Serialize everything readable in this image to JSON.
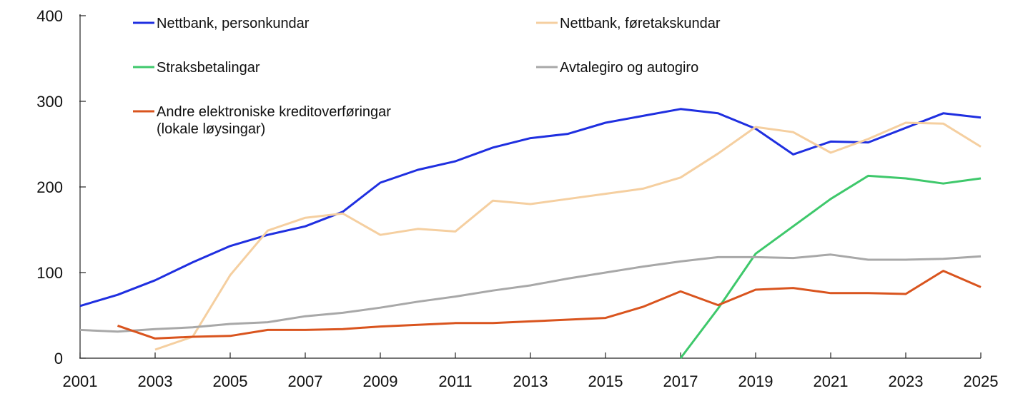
{
  "chart_data": {
    "type": "line",
    "title": "",
    "xlabel": "",
    "ylabel": "",
    "xlim": [
      2001,
      2025
    ],
    "ylim": [
      0,
      400
    ],
    "x_ticks": [
      "2001",
      "2003",
      "2005",
      "2007",
      "2009",
      "2011",
      "2013",
      "2015",
      "2017",
      "2019",
      "2021",
      "2023",
      "2025"
    ],
    "y_ticks": [
      "0",
      "100",
      "200",
      "300",
      "400"
    ],
    "grid": false,
    "legend_position": "top-left, two columns inside plot",
    "series": [
      {
        "name": "Nettbank, personkundar",
        "color": "#1f2fe0",
        "points": [
          [
            2001,
            61
          ],
          [
            2002,
            74
          ],
          [
            2003,
            91
          ],
          [
            2004,
            112
          ],
          [
            2005,
            131
          ],
          [
            2006,
            144
          ],
          [
            2007,
            154
          ],
          [
            2008,
            171
          ],
          [
            2009,
            205
          ],
          [
            2010,
            220
          ],
          [
            2011,
            230
          ],
          [
            2012,
            246
          ],
          [
            2013,
            257
          ],
          [
            2014,
            262
          ],
          [
            2015,
            275
          ],
          [
            2016,
            283
          ],
          [
            2017,
            291
          ],
          [
            2018,
            286
          ],
          [
            2019,
            268
          ],
          [
            2020,
            238
          ],
          [
            2021,
            253
          ],
          [
            2022,
            252
          ],
          [
            2023,
            269
          ],
          [
            2024,
            286
          ],
          [
            2025,
            281
          ]
        ]
      },
      {
        "name": "Nettbank, føretakskundar",
        "color": "#f5cfa0",
        "points": [
          [
            2003,
            10
          ],
          [
            2004,
            25
          ],
          [
            2005,
            97
          ],
          [
            2006,
            149
          ],
          [
            2007,
            164
          ],
          [
            2008,
            169
          ],
          [
            2009,
            144
          ],
          [
            2010,
            151
          ],
          [
            2011,
            148
          ],
          [
            2012,
            184
          ],
          [
            2013,
            180
          ],
          [
            2014,
            186
          ],
          [
            2015,
            192
          ],
          [
            2016,
            198
          ],
          [
            2017,
            211
          ],
          [
            2018,
            239
          ],
          [
            2019,
            270
          ],
          [
            2020,
            264
          ],
          [
            2021,
            240
          ],
          [
            2022,
            256
          ],
          [
            2023,
            275
          ],
          [
            2024,
            274
          ],
          [
            2025,
            247
          ]
        ]
      },
      {
        "name": "Straksbetalingar",
        "color": "#3ec86b",
        "points": [
          [
            2017,
            0
          ],
          [
            2018,
            58
          ],
          [
            2019,
            122
          ],
          [
            2020,
            154
          ],
          [
            2021,
            186
          ],
          [
            2022,
            213
          ],
          [
            2023,
            210
          ],
          [
            2024,
            204
          ],
          [
            2025,
            210
          ]
        ]
      },
      {
        "name": "Avtalegiro og autogiro",
        "color": "#a8a8a8",
        "points": [
          [
            2001,
            33
          ],
          [
            2002,
            31
          ],
          [
            2003,
            34
          ],
          [
            2004,
            36
          ],
          [
            2005,
            40
          ],
          [
            2006,
            42
          ],
          [
            2007,
            49
          ],
          [
            2008,
            53
          ],
          [
            2009,
            59
          ],
          [
            2010,
            66
          ],
          [
            2011,
            72
          ],
          [
            2012,
            79
          ],
          [
            2013,
            85
          ],
          [
            2014,
            93
          ],
          [
            2015,
            100
          ],
          [
            2016,
            107
          ],
          [
            2017,
            113
          ],
          [
            2018,
            118
          ],
          [
            2019,
            118
          ],
          [
            2020,
            117
          ],
          [
            2021,
            121
          ],
          [
            2022,
            115
          ],
          [
            2023,
            115
          ],
          [
            2024,
            116
          ],
          [
            2025,
            119
          ]
        ]
      },
      {
        "name": "Andre elektroniske kreditoverføringar (lokale løysingar)",
        "label_lines": [
          "Andre elektroniske kreditoverføringar",
          "(lokale løysingar)"
        ],
        "color": "#d9541e",
        "points": [
          [
            2002,
            38
          ],
          [
            2003,
            23
          ],
          [
            2004,
            25
          ],
          [
            2005,
            26
          ],
          [
            2006,
            33
          ],
          [
            2007,
            33
          ],
          [
            2008,
            34
          ],
          [
            2009,
            37
          ],
          [
            2010,
            39
          ],
          [
            2011,
            41
          ],
          [
            2012,
            41
          ],
          [
            2013,
            43
          ],
          [
            2014,
            45
          ],
          [
            2015,
            47
          ],
          [
            2016,
            60
          ],
          [
            2017,
            78
          ],
          [
            2018,
            62
          ],
          [
            2019,
            80
          ],
          [
            2020,
            82
          ],
          [
            2021,
            76
          ],
          [
            2022,
            76
          ],
          [
            2023,
            75
          ],
          [
            2024,
            102
          ],
          [
            2025,
            83
          ]
        ]
      }
    ]
  }
}
